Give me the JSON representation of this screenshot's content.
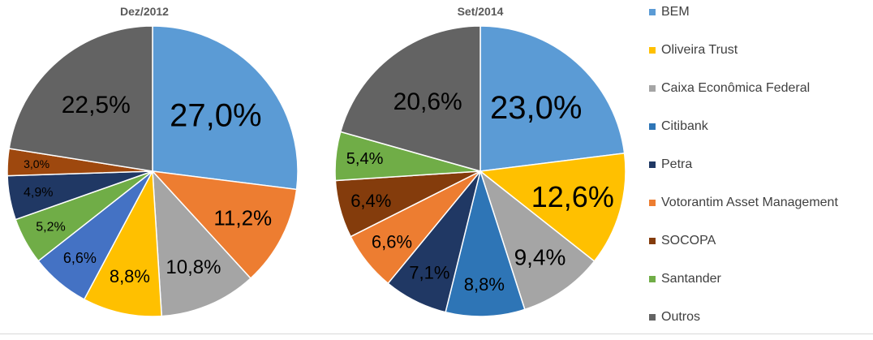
{
  "legend": [
    {
      "label": "BEM",
      "color": "#5b9bd5"
    },
    {
      "label": "Oliveira Trust",
      "color": "#ffc000"
    },
    {
      "label": "Caixa Econômica Federal",
      "color": "#a5a5a5"
    },
    {
      "label": "Citibank",
      "color": "#2e75b6"
    },
    {
      "label": "Petra",
      "color": "#203864"
    },
    {
      "label": "Votorantim Asset Management",
      "color": "#ed7d31"
    },
    {
      "label": "SOCOPA",
      "color": "#843c0c"
    },
    {
      "label": "Santander",
      "color": "#70ad47"
    },
    {
      "label": "Outros",
      "color": "#636363"
    }
  ],
  "chart_data": [
    {
      "type": "pie",
      "title": "Dez/2012",
      "slices": [
        {
          "name": "",
          "value": 27.0,
          "label": "27,0%",
          "color": "#5b9bd5"
        },
        {
          "name": "",
          "value": 11.2,
          "label": "11,2%",
          "color": "#ed7d31"
        },
        {
          "name": "",
          "value": 10.8,
          "label": "10,8%",
          "color": "#a5a5a5"
        },
        {
          "name": "",
          "value": 8.8,
          "label": "8,8%",
          "color": "#ffc000"
        },
        {
          "name": "",
          "value": 6.6,
          "label": "6,6%",
          "color": "#4472c4"
        },
        {
          "name": "",
          "value": 5.2,
          "label": "5,2%",
          "color": "#70ad47"
        },
        {
          "name": "",
          "value": 4.9,
          "label": "4,9%",
          "color": "#203864"
        },
        {
          "name": "",
          "value": 3.0,
          "label": "3,0%",
          "color": "#9e480e"
        },
        {
          "name": "",
          "value": 22.5,
          "label": "22,5%",
          "color": "#636363"
        }
      ]
    },
    {
      "type": "pie",
      "title": "Set/2014",
      "slices": [
        {
          "name": "",
          "value": 23.0,
          "label": "23,0%",
          "color": "#5b9bd5"
        },
        {
          "name": "",
          "value": 12.6,
          "label": "12,6%",
          "color": "#ffc000"
        },
        {
          "name": "",
          "value": 9.4,
          "label": "9,4%",
          "color": "#a5a5a5"
        },
        {
          "name": "",
          "value": 8.8,
          "label": "8,8%",
          "color": "#2e75b6"
        },
        {
          "name": "",
          "value": 7.1,
          "label": "7,1%",
          "color": "#203864"
        },
        {
          "name": "",
          "value": 6.6,
          "label": "6,6%",
          "color": "#ed7d31"
        },
        {
          "name": "",
          "value": 6.4,
          "label": "6,4%",
          "color": "#843c0c"
        },
        {
          "name": "",
          "value": 5.4,
          "label": "5,4%",
          "color": "#70ad47"
        },
        {
          "name": "",
          "value": 20.6,
          "label": "20,6%",
          "color": "#636363"
        }
      ]
    }
  ]
}
